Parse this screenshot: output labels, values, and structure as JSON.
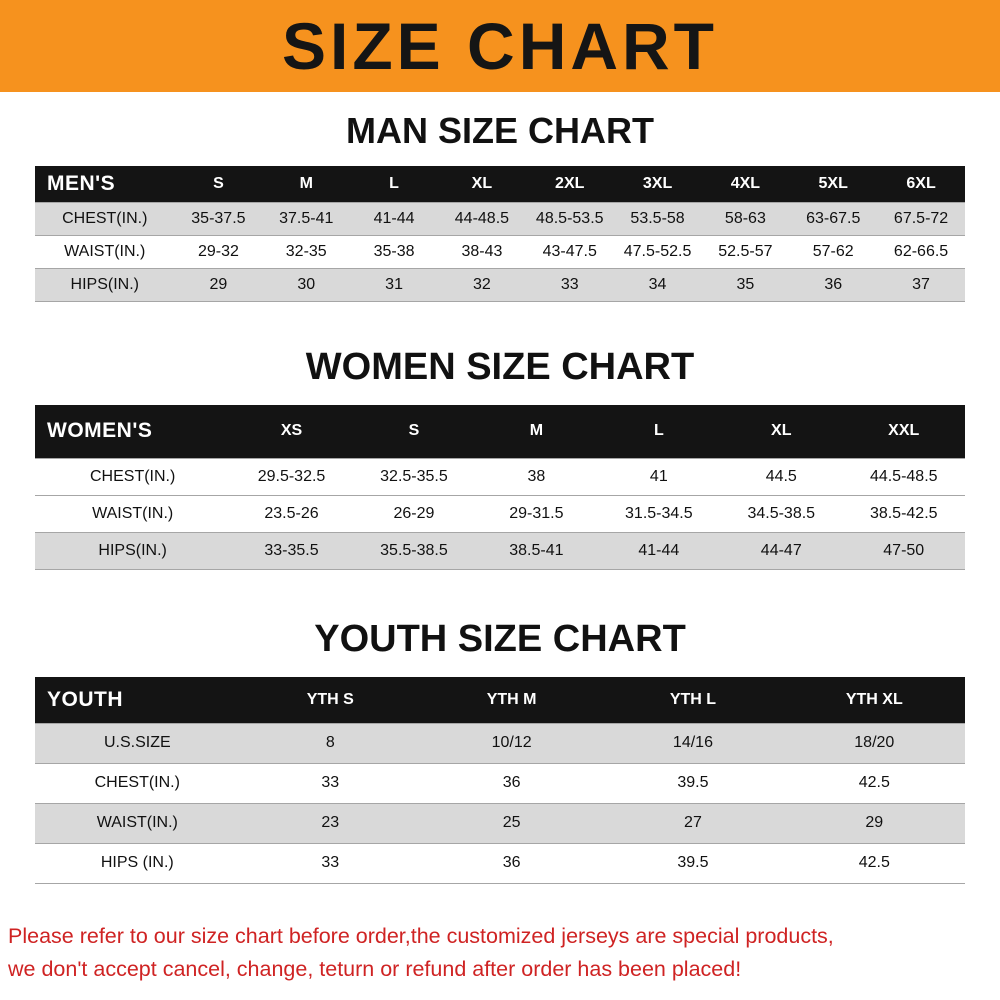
{
  "banner": {
    "title": "SIZE CHART"
  },
  "colors": {
    "banner_bg": "#f6921e",
    "table_header_bg": "#141414",
    "row_stripe": "#d9d9d9",
    "note_red": "#cf2323"
  },
  "chart_data": [
    {
      "type": "table",
      "id": "men",
      "title": "MAN SIZE CHART",
      "columns": [
        "MEN'S",
        "S",
        "M",
        "L",
        "XL",
        "2XL",
        "3XL",
        "4XL",
        "5XL",
        "6XL"
      ],
      "rows": [
        {
          "label": "CHEST(IN.)",
          "values": [
            "35-37.5",
            "37.5-41",
            "41-44",
            "44-48.5",
            "48.5-53.5",
            "53.5-58",
            "58-63",
            "63-67.5",
            "67.5-72"
          ]
        },
        {
          "label": "WAIST(IN.)",
          "values": [
            "29-32",
            "32-35",
            "35-38",
            "38-43",
            "43-47.5",
            "47.5-52.5",
            "52.5-57",
            "57-62",
            "62-66.5"
          ]
        },
        {
          "label": "HIPS(IN.)",
          "values": [
            "29",
            "30",
            "31",
            "32",
            "33",
            "34",
            "35",
            "36",
            "37"
          ]
        }
      ]
    },
    {
      "type": "table",
      "id": "women",
      "title": "WOMEN SIZE CHART",
      "columns": [
        "WOMEN'S",
        "XS",
        "S",
        "M",
        "L",
        "XL",
        "XXL"
      ],
      "rows": [
        {
          "label": "CHEST(IN.)",
          "values": [
            "29.5-32.5",
            "32.5-35.5",
            "38",
            "41",
            "44.5",
            "44.5-48.5"
          ]
        },
        {
          "label": "WAIST(IN.)",
          "values": [
            "23.5-26",
            "26-29",
            "29-31.5",
            "31.5-34.5",
            "34.5-38.5",
            "38.5-42.5"
          ]
        },
        {
          "label": "HIPS(IN.)",
          "values": [
            "33-35.5",
            "35.5-38.5",
            "38.5-41",
            "41-44",
            "44-47",
            "47-50"
          ]
        }
      ]
    },
    {
      "type": "table",
      "id": "youth",
      "title": "YOUTH SIZE CHART",
      "columns": [
        "YOUTH",
        "YTH S",
        "YTH M",
        "YTH L",
        "YTH XL"
      ],
      "rows": [
        {
          "label": "U.S.SIZE",
          "values": [
            "8",
            "10/12",
            "14/16",
            "18/20"
          ]
        },
        {
          "label": "CHEST(IN.)",
          "values": [
            "33",
            "36",
            "39.5",
            "42.5"
          ]
        },
        {
          "label": "WAIST(IN.)",
          "values": [
            "23",
            "25",
            "27",
            "29"
          ]
        },
        {
          "label": "HIPS (IN.)",
          "values": [
            "33",
            "36",
            "39.5",
            "42.5"
          ]
        }
      ]
    }
  ],
  "footer": {
    "lines": [
      "Please refer to our size chart before order,the customized jerseys are special products,",
      "we don't accept cancel, change, teturn or refund after order has been placed!"
    ]
  }
}
